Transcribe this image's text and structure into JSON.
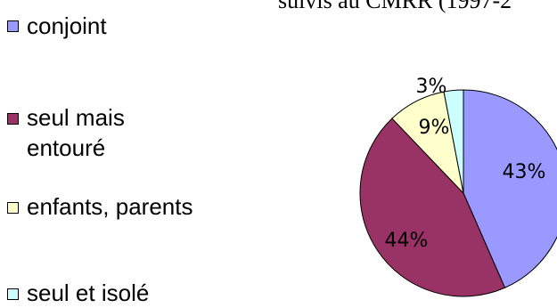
{
  "title_fragment": "suivis au CMRR (1997-2",
  "legend": [
    {
      "label": "conjoint",
      "color": "#9999ff"
    },
    {
      "label": "seul mais entouré",
      "color": "#993366"
    },
    {
      "label": "enfants, parents",
      "color": "#ffffcc"
    },
    {
      "label": "seul et isolé",
      "color": "#ccffff"
    }
  ],
  "chart_data": {
    "type": "pie",
    "title": "",
    "legend_position": "left",
    "slices": [
      {
        "label": "conjoint",
        "value": 43,
        "display": "43%",
        "color": "#9999ff"
      },
      {
        "label": "seul mais entouré",
        "value": 44,
        "display": "44%",
        "color": "#993366"
      },
      {
        "label": "enfants, parents",
        "value": 9,
        "display": "9%",
        "color": "#ffffcc"
      },
      {
        "label": "seul et isolé",
        "value": 3,
        "display": "3%",
        "color": "#ccffff"
      }
    ]
  }
}
